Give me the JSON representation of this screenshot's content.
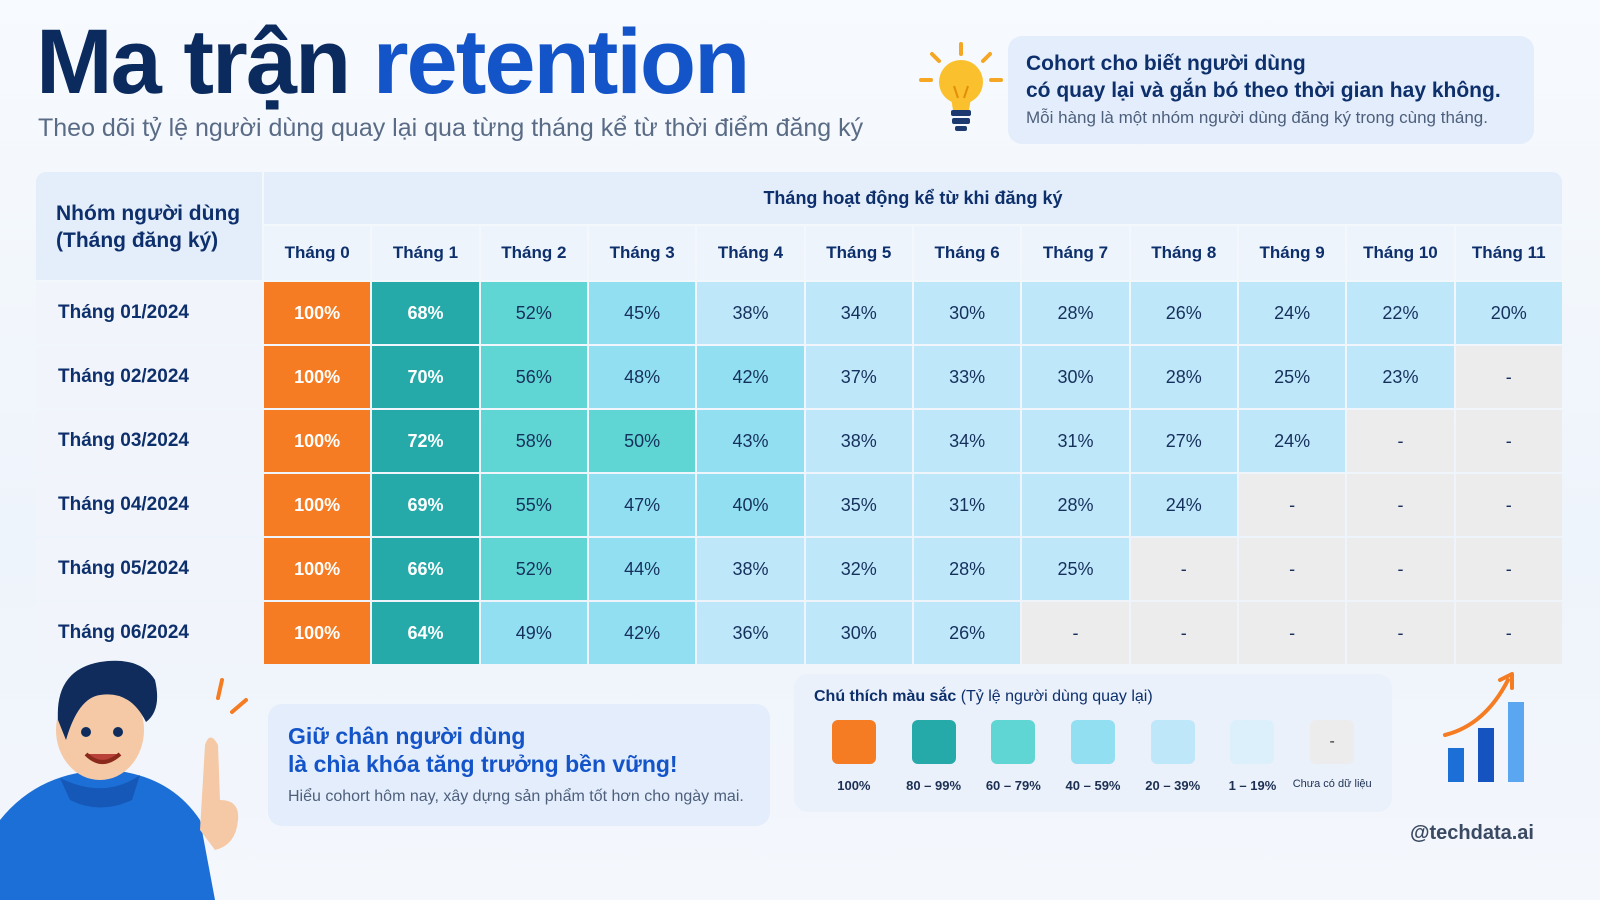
{
  "header": {
    "title_part1": "Ma trận",
    "title_part2": "retention",
    "subtitle": "Theo dõi tỷ lệ người dùng quay lại qua từng tháng kể từ thời điểm đăng ký"
  },
  "info": {
    "line1": "Cohort cho biết người dùng",
    "line2": "có quay lại và gắn bó theo thời gian hay không.",
    "line3": "Mỗi hàng là một nhóm người dùng đăng ký trong cùng tháng."
  },
  "chart_data": {
    "type": "heatmap",
    "row_header": "Nhóm người dùng (Tháng đăng ký)",
    "row_header_line1": "Nhóm người dùng",
    "row_header_line2": "(Tháng đăng ký)",
    "column_group_header": "Tháng hoạt động kể từ khi đăng ký",
    "columns": [
      "Tháng 0",
      "Tháng 1",
      "Tháng 2",
      "Tháng 3",
      "Tháng 4",
      "Tháng 5",
      "Tháng 6",
      "Tháng 7",
      "Tháng 8",
      "Tháng 9",
      "Tháng 10",
      "Tháng 11"
    ],
    "rows": [
      {
        "cohort": "Tháng 01/2024",
        "values": [
          "100%",
          "68%",
          "52%",
          "45%",
          "38%",
          "34%",
          "30%",
          "28%",
          "26%",
          "24%",
          "22%",
          "20%"
        ]
      },
      {
        "cohort": "Tháng 02/2024",
        "values": [
          "100%",
          "70%",
          "56%",
          "48%",
          "42%",
          "37%",
          "33%",
          "30%",
          "28%",
          "25%",
          "23%",
          "-"
        ]
      },
      {
        "cohort": "Tháng 03/2024",
        "values": [
          "100%",
          "72%",
          "58%",
          "50%",
          "43%",
          "38%",
          "34%",
          "31%",
          "27%",
          "24%",
          "-",
          "-"
        ]
      },
      {
        "cohort": "Tháng 04/2024",
        "values": [
          "100%",
          "69%",
          "55%",
          "47%",
          "40%",
          "35%",
          "31%",
          "28%",
          "24%",
          "-",
          "-",
          "-"
        ]
      },
      {
        "cohort": "Tháng 05/2024",
        "values": [
          "100%",
          "66%",
          "52%",
          "44%",
          "38%",
          "32%",
          "28%",
          "25%",
          "-",
          "-",
          "-",
          "-"
        ]
      },
      {
        "cohort": "Tháng 06/2024",
        "values": [
          "100%",
          "64%",
          "49%",
          "42%",
          "36%",
          "30%",
          "26%",
          "-",
          "-",
          "-",
          "-",
          "-"
        ]
      }
    ]
  },
  "quote": {
    "line1": "Giữ chân người dùng",
    "line2": "là chìa khóa tăng trưởng bền vững!",
    "line3": "Hiểu cohort hôm nay, xây dựng sản phẩm tốt hơn cho ngày mai."
  },
  "legend": {
    "title_bold": "Chú thích màu sắc",
    "title_rest": "(Tỷ lệ người dùng quay lại)",
    "items": [
      {
        "label": "100%",
        "color": "#f57c22",
        "mark": ""
      },
      {
        "label": "80 – 99%",
        "color": "#26a9a9",
        "mark": ""
      },
      {
        "label": "60 – 79%",
        "color": "#5fd6d4",
        "mark": ""
      },
      {
        "label": "40 – 59%",
        "color": "#92dff2",
        "mark": ""
      },
      {
        "label": "20 – 39%",
        "color": "#bfe7fa",
        "mark": ""
      },
      {
        "label": "1 – 19%",
        "color": "#dcf0fc",
        "mark": ""
      },
      {
        "label": "Chưa có dữ liệu",
        "color": "#ececec",
        "mark": "-"
      }
    ]
  },
  "footer": {
    "handle": "@techdata.ai"
  },
  "colors": {
    "title_dark": "#0b2a5e",
    "title_blue": "#1454c9",
    "c100": "#f57c22",
    "c60_79_dark": "#26a9a9",
    "c50_59": "#5fd6d4",
    "c40_49": "#92dff2",
    "c20_39": "#bfe7fa",
    "c1_19": "#dcf0fc",
    "no_data": "#ececec"
  },
  "icons": [
    "lightbulb-icon",
    "person-pointing-illustration",
    "growth-chart-icon"
  ]
}
